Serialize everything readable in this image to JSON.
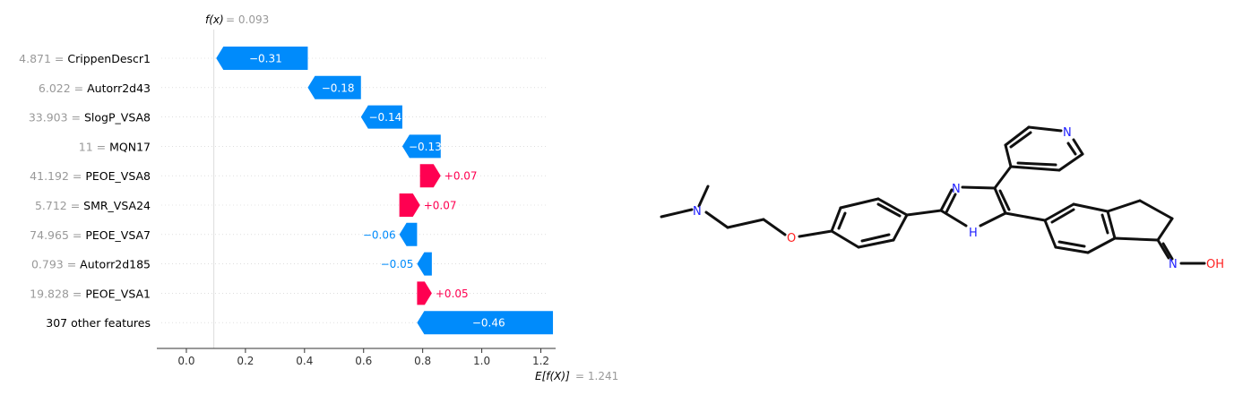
{
  "chart_data": {
    "type": "waterfall",
    "fx_label": "f(x)",
    "fx_value": "0.093",
    "base_label": "E[f(X)]",
    "base_value": "1.241",
    "fx": 0.093,
    "base": 1.241,
    "xlim": [
      -0.1,
      1.25
    ],
    "xticks": [
      0.0,
      0.2,
      0.4,
      0.6,
      0.8,
      1.0,
      1.2
    ],
    "xtick_labels": [
      "0.0",
      "0.2",
      "0.4",
      "0.6",
      "0.8",
      "1.0",
      "1.2"
    ],
    "features": [
      {
        "value": "4.871",
        "name": "CrippenDescr1",
        "shap": -0.31,
        "label": "−0.31"
      },
      {
        "value": "6.022",
        "name": "Autorr2d43",
        "shap": -0.18,
        "label": "−0.18"
      },
      {
        "value": "33.903",
        "name": "SlogP_VSA8",
        "shap": -0.14,
        "label": "−0.14"
      },
      {
        "value": "11",
        "name": "MQN17",
        "shap": -0.13,
        "label": "−0.13"
      },
      {
        "value": "41.192",
        "name": "PEOE_VSA8",
        "shap": 0.07,
        "label": "+0.07"
      },
      {
        "value": "5.712",
        "name": "SMR_VSA24",
        "shap": 0.07,
        "label": "+0.07"
      },
      {
        "value": "74.965",
        "name": "PEOE_VSA7",
        "shap": -0.06,
        "label": "−0.06"
      },
      {
        "value": "0.793",
        "name": "Autorr2d185",
        "shap": -0.05,
        "label": "−0.05"
      },
      {
        "value": "19.828",
        "name": "PEOE_VSA1",
        "shap": 0.05,
        "label": "+0.05"
      },
      {
        "value": "",
        "name": "307 other features",
        "shap": -0.46,
        "label": "−0.46"
      }
    ],
    "colors": {
      "negative": "#008bfb",
      "positive": "#ff0051"
    }
  },
  "molecule": {
    "atom_labels": {
      "n_pyridine": "N",
      "n_imidazole": "N",
      "nh_imidazole": "H",
      "n_amine": "N",
      "o_ether": "O",
      "n_oxime": "N",
      "oh_oxime": "OH"
    },
    "colors": {
      "nitrogen": "#2020ff",
      "oxygen": "#ff2020",
      "bond": "#111111"
    }
  }
}
